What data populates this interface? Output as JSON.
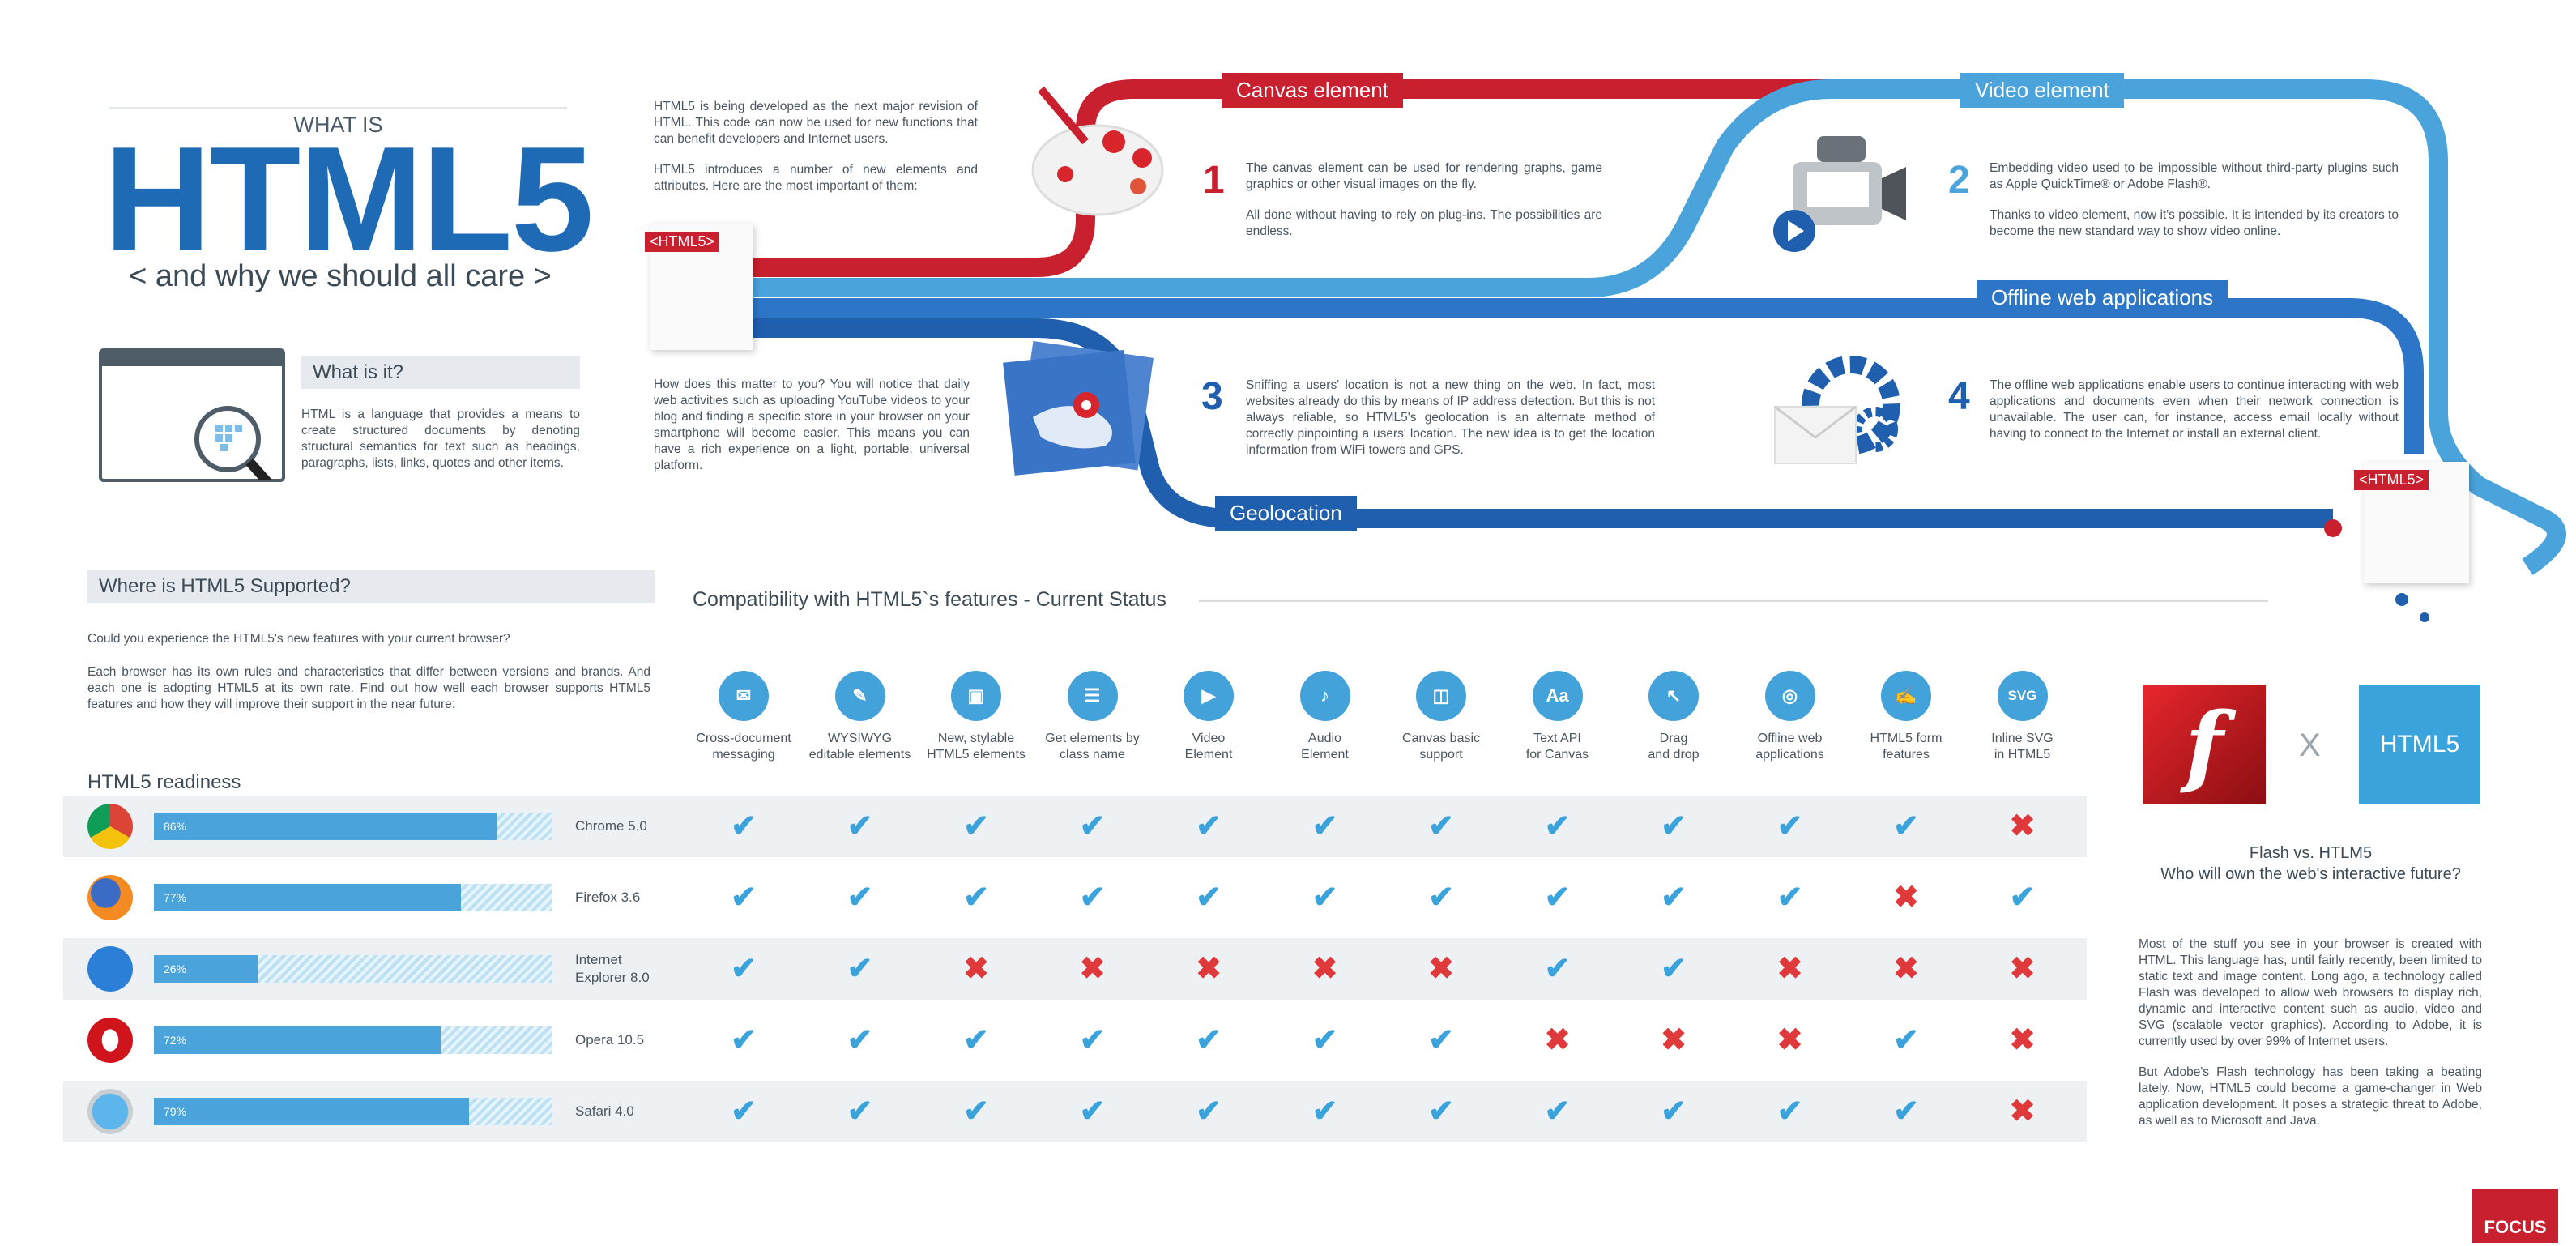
{
  "header": {
    "what_is": "WHAT IS",
    "title": "HTML5",
    "subtitle": "< and why we should all care >"
  },
  "what_is_it": {
    "heading": "What is it?",
    "text": "HTML is a language that provides a means to create structured documents by denoting structural semantics for text such as headings, paragraphs, lists, links, quotes and other items."
  },
  "intro": {
    "p1": "HTML5 is being developed as the next major revision of HTML. This code can now be used for new functions that can benefit developers and Internet users.",
    "p2": "HTML5 introduces a number of new elements and attributes. Here are the most important of them:",
    "p3": "How does this matter to you? You will notice that daily web activities such as uploading YouTube videos to your blog and finding a specific store in your browser on your smartphone will become easier. This means you can have a rich experience on a light, portable, universal platform."
  },
  "tag_label": "<HTML5>",
  "features": [
    {
      "num": "1",
      "title": "Canvas element",
      "p1": "The canvas element can be used for rendering graphs, game graphics or other visual images on the fly.",
      "p2": "All done without having to rely on plug-ins. The possibilities are endless."
    },
    {
      "num": "2",
      "title": "Video element",
      "p1": "Embedding video used to be impossible without third-party plugins such as Apple QuickTime® or Adobe Flash®.",
      "p2": "Thanks to video element, now it's possible. It is intended by its creators to become the new standard way to show video online."
    },
    {
      "num": "3",
      "title": "Geolocation",
      "p1": "Sniffing a users' location is not a new thing on the web. In fact, most websites already do this by means of IP address detection. But this is not always reliable, so HTML5's geolocation is an alternate method of correctly pinpointing a users' location. The new idea is to get the location information from WiFi towers and GPS.",
      "p2": ""
    },
    {
      "num": "4",
      "title": "Offline web applications",
      "p1": "The offline web applications enable users to continue interacting with web applications and documents even when their network connection is unavailable. The user can, for instance, access email locally without having to connect to the Internet or install an external client.",
      "p2": ""
    }
  ],
  "supported": {
    "heading": "Where is HTML5 Supported?",
    "q": "Could you experience the HTML5's new features with your current browser?",
    "text": "Each browser has its own rules and characteristics that differ between versions and brands. And each one is adopting HTML5 at its own rate.  Find out how well each browser supports HTML5 features and how they will improve their support in the near future:",
    "readiness": "HTML5 readiness"
  },
  "compat_title": "Compatibility with HTML5`s features - Current Status",
  "feature_columns": [
    {
      "l1": "Cross-document",
      "l2": "messaging",
      "icon": "envelope-icon",
      "glyph": "✉"
    },
    {
      "l1": "WYSIWYG",
      "l2": "editable elements",
      "icon": "pencil-icon",
      "glyph": "✎"
    },
    {
      "l1": "New, stylable",
      "l2": "HTML5 elements",
      "icon": "screen-icon",
      "glyph": "▣"
    },
    {
      "l1": "Get elements by",
      "l2": "class name",
      "icon": "list-icon",
      "glyph": "☰"
    },
    {
      "l1": "Video",
      "l2": "Element",
      "icon": "clapperboard-icon",
      "glyph": "▶"
    },
    {
      "l1": "Audio",
      "l2": "Element",
      "icon": "speaker-icon",
      "glyph": "♪"
    },
    {
      "l1": "Canvas basic",
      "l2": "support",
      "icon": "easel-icon",
      "glyph": "◫"
    },
    {
      "l1": "Text API",
      "l2": "for Canvas",
      "icon": "text-icon",
      "glyph": "Aa"
    },
    {
      "l1": "Drag",
      "l2": "and drop",
      "icon": "cursor-icon",
      "glyph": "↖"
    },
    {
      "l1": "Offline web",
      "l2": "applications",
      "icon": "globe-icon",
      "glyph": "◎"
    },
    {
      "l1": "HTML5 form",
      "l2": "features",
      "icon": "form-icon",
      "glyph": "✍"
    },
    {
      "l1": "Inline SVG",
      "l2": "in HTML5",
      "icon": "svg-icon",
      "glyph": "SVG"
    }
  ],
  "browsers": [
    {
      "name": "Chrome 5.0",
      "pct": 86,
      "pct_label": "86%",
      "logo": "chrome-logo-icon",
      "support": [
        1,
        1,
        1,
        1,
        1,
        1,
        1,
        1,
        1,
        1,
        1,
        0
      ]
    },
    {
      "name": "Firefox 3.6",
      "pct": 77,
      "pct_label": "77%",
      "logo": "firefox-logo-icon",
      "support": [
        1,
        1,
        1,
        1,
        1,
        1,
        1,
        1,
        1,
        1,
        0,
        1
      ]
    },
    {
      "name": "Internet Explorer 8.0",
      "pct": 26,
      "pct_label": "26%",
      "logo": "ie-logo-icon",
      "support": [
        1,
        1,
        0,
        0,
        0,
        0,
        0,
        1,
        1,
        0,
        0,
        0
      ]
    },
    {
      "name": "Opera 10.5",
      "pct": 72,
      "pct_label": "72%",
      "logo": "opera-logo-icon",
      "support": [
        1,
        1,
        1,
        1,
        1,
        1,
        1,
        0,
        0,
        0,
        1,
        0
      ]
    },
    {
      "name": "Safari 4.0",
      "pct": 79,
      "pct_label": "79%",
      "logo": "safari-logo-icon",
      "support": [
        1,
        1,
        1,
        1,
        1,
        1,
        1,
        1,
        1,
        1,
        1,
        0
      ]
    }
  ],
  "versus": {
    "x": "X",
    "html5_badge": "HTML5",
    "title1": "Flash vs. HTLM5",
    "title2": "Who will own the web's interactive future?",
    "p1": "Most of the stuff you see in your browser is created with HTML. This language has, until fairly recently, been limited to static text and image content. Long ago, a technology called Flash was developed to allow web browsers to display rich, dynamic and interactive content such as audio, video and SVG (scalable vector graphics). According to Adobe, it is currently used by over 99% of Internet users.",
    "p2": "But Adobe's Flash technology has been taking a beating lately. Now, HTML5 could become a game-changer in Web application development. It poses a strategic threat to Adobe, as well as to Microsoft and Java."
  },
  "brand": "FOCUS",
  "colors": {
    "dark_blue": "#1f5fae",
    "light_blue": "#4aa3da",
    "red": "#c8202f",
    "check": "#3ba3dc",
    "cross": "#e0393b"
  }
}
